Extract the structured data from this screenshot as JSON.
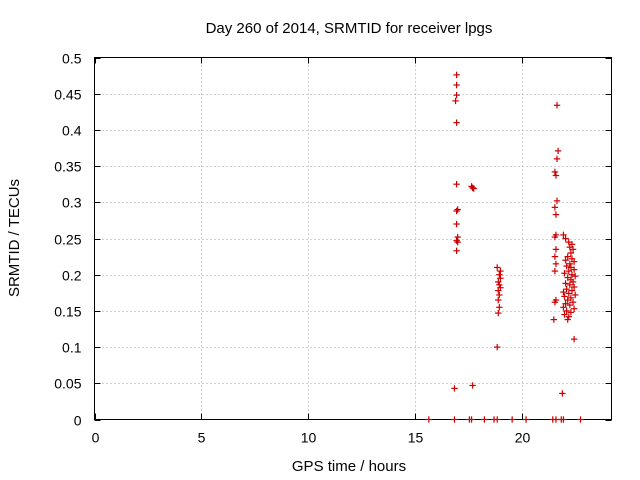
{
  "chart_data": {
    "type": "scatter",
    "title": "Day 260 of 2014, SRMTID for receiver lpgs",
    "xlabel": "GPS time / hours",
    "ylabel": "SRMTID / TECUs",
    "xlim": [
      0,
      24.2
    ],
    "ylim": [
      0,
      0.5
    ],
    "xticks": [
      0,
      5,
      10,
      15,
      20
    ],
    "yticks": [
      0,
      0.05,
      0.1,
      0.15,
      0.2,
      0.25,
      0.3,
      0.35,
      0.4,
      0.45,
      0.5
    ],
    "grid": true,
    "marker": "plus",
    "color": "#cc0000",
    "series": [
      {
        "points": [
          [
            15.65,
            0.0
          ],
          [
            16.85,
            0.0
          ],
          [
            17.55,
            0.0
          ],
          [
            17.65,
            0.0
          ],
          [
            18.25,
            0.0
          ],
          [
            18.7,
            0.0
          ],
          [
            18.85,
            0.0
          ],
          [
            19.55,
            0.0
          ],
          [
            20.2,
            0.0
          ],
          [
            21.45,
            0.0
          ],
          [
            21.6,
            0.0
          ],
          [
            21.85,
            0.0
          ],
          [
            21.95,
            0.0
          ],
          [
            22.75,
            0.0
          ],
          [
            16.95,
            0.476
          ],
          [
            16.95,
            0.462
          ],
          [
            16.95,
            0.448
          ],
          [
            16.9,
            0.44
          ],
          [
            16.95,
            0.41
          ],
          [
            16.95,
            0.325
          ],
          [
            17.0,
            0.29
          ],
          [
            16.95,
            0.288
          ],
          [
            16.95,
            0.27
          ],
          [
            17.0,
            0.252
          ],
          [
            16.95,
            0.247
          ],
          [
            17.0,
            0.245
          ],
          [
            16.95,
            0.233
          ],
          [
            16.85,
            0.043
          ],
          [
            17.65,
            0.322
          ],
          [
            17.7,
            0.32
          ],
          [
            17.75,
            0.319
          ],
          [
            17.7,
            0.047
          ],
          [
            18.85,
            0.21
          ],
          [
            19.0,
            0.205
          ],
          [
            18.95,
            0.2
          ],
          [
            19.0,
            0.195
          ],
          [
            18.9,
            0.19
          ],
          [
            18.95,
            0.186
          ],
          [
            19.0,
            0.182
          ],
          [
            18.9,
            0.178
          ],
          [
            18.95,
            0.172
          ],
          [
            18.9,
            0.165
          ],
          [
            18.95,
            0.155
          ],
          [
            18.9,
            0.147
          ],
          [
            18.85,
            0.1
          ],
          [
            21.65,
            0.434
          ],
          [
            21.7,
            0.371
          ],
          [
            21.65,
            0.36
          ],
          [
            21.55,
            0.342
          ],
          [
            21.6,
            0.337
          ],
          [
            21.65,
            0.302
          ],
          [
            21.55,
            0.293
          ],
          [
            21.6,
            0.283
          ],
          [
            21.6,
            0.255
          ],
          [
            21.55,
            0.252
          ],
          [
            21.6,
            0.235
          ],
          [
            21.55,
            0.225
          ],
          [
            21.6,
            0.215
          ],
          [
            21.55,
            0.205
          ],
          [
            21.6,
            0.165
          ],
          [
            21.55,
            0.162
          ],
          [
            21.5,
            0.138
          ],
          [
            21.95,
            0.255
          ],
          [
            22.05,
            0.25
          ],
          [
            22.2,
            0.245
          ],
          [
            22.35,
            0.242
          ],
          [
            22.25,
            0.238
          ],
          [
            22.4,
            0.235
          ],
          [
            22.3,
            0.23
          ],
          [
            22.15,
            0.225
          ],
          [
            22.35,
            0.222
          ],
          [
            22.05,
            0.22
          ],
          [
            22.45,
            0.218
          ],
          [
            22.25,
            0.215
          ],
          [
            22.1,
            0.212
          ],
          [
            22.3,
            0.21
          ],
          [
            22.45,
            0.207
          ],
          [
            22.2,
            0.205
          ],
          [
            22.0,
            0.202
          ],
          [
            22.35,
            0.2
          ],
          [
            22.5,
            0.198
          ],
          [
            22.15,
            0.196
          ],
          [
            22.3,
            0.193
          ],
          [
            22.4,
            0.19
          ],
          [
            22.05,
            0.188
          ],
          [
            22.25,
            0.186
          ],
          [
            22.45,
            0.183
          ],
          [
            22.1,
            0.18
          ],
          [
            22.35,
            0.178
          ],
          [
            21.95,
            0.176
          ],
          [
            22.2,
            0.174
          ],
          [
            22.5,
            0.172
          ],
          [
            22.0,
            0.17
          ],
          [
            22.3,
            0.168
          ],
          [
            22.15,
            0.165
          ],
          [
            22.4,
            0.162
          ],
          [
            22.05,
            0.16
          ],
          [
            22.25,
            0.158
          ],
          [
            21.95,
            0.155
          ],
          [
            22.45,
            0.153
          ],
          [
            22.1,
            0.15
          ],
          [
            22.3,
            0.148
          ],
          [
            22.0,
            0.145
          ],
          [
            22.2,
            0.142
          ],
          [
            22.15,
            0.138
          ],
          [
            21.9,
            0.036
          ],
          [
            22.45,
            0.111
          ]
        ]
      }
    ]
  }
}
